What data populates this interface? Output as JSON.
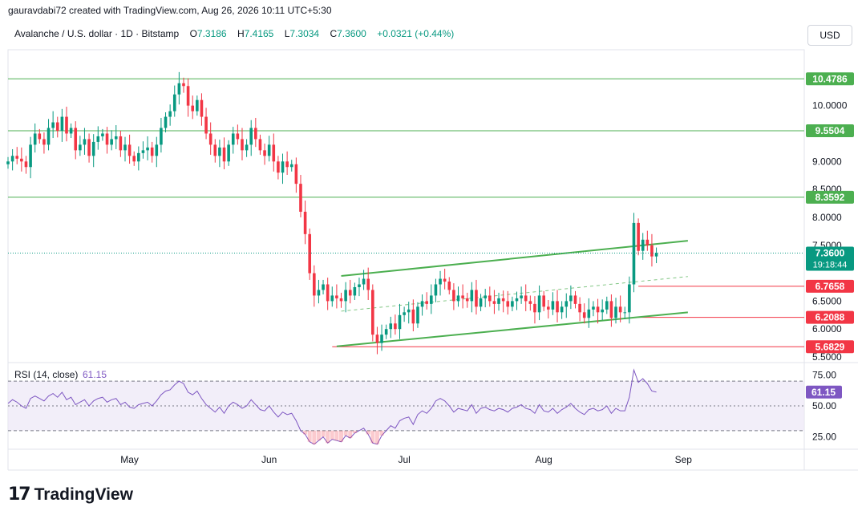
{
  "header": {
    "created_by": "gauravdabi72 created with TradingView.com, Aug 26, 2026 10:11 UTC+5:30"
  },
  "symbol": {
    "name": "Avalanche / U.S. dollar · 1D · Bitstamp",
    "open_label": "O",
    "open": "7.3186",
    "high_label": "H",
    "high": "7.4165",
    "low_label": "L",
    "low": "7.3034",
    "close_label": "C",
    "close": "7.3600",
    "change": "+0.0321 (+0.44%)"
  },
  "currency": "USD",
  "logo_text": "TradingView",
  "colors": {
    "up": "#089981",
    "down": "#f23645",
    "support_line": "#4caf50",
    "resistance_red": "#f23645",
    "rsi_line": "#7e57c2",
    "rsi_band": "#ede7f6"
  },
  "chart_data": [
    {
      "type": "candlestick",
      "x_axis_labels": [
        "May",
        "Jun",
        "Jul",
        "Aug",
        "Sep"
      ],
      "y_axis_ticks": [
        "10.0000",
        "9.0000",
        "8.5000",
        "8.0000",
        "7.5000",
        "6.5000",
        "6.0000",
        "5.5000"
      ],
      "ylim": [
        5.4,
        11.0
      ],
      "last_price": "7.3600",
      "countdown": "19:18:44",
      "horizontal_levels": [
        {
          "label": "10.4786",
          "value": 10.4786,
          "color": "#4caf50"
        },
        {
          "label": "9.5504",
          "value": 9.5504,
          "color": "#4caf50"
        },
        {
          "label": "8.3592",
          "value": 8.3592,
          "color": "#4caf50"
        },
        {
          "label": "6.7658",
          "value": 6.7658,
          "color": "#f23645"
        },
        {
          "label": "6.2088",
          "value": 6.2088,
          "color": "#f23645"
        },
        {
          "label": "5.6829",
          "value": 5.6829,
          "color": "#f23645"
        }
      ],
      "channel": {
        "upper": [
          [
            "Jun 17",
            6.95
          ],
          [
            "Sep 2",
            7.58
          ]
        ],
        "lower": [
          [
            "Jun 16",
            5.69
          ],
          [
            "Sep 2",
            6.3
          ]
        ],
        "mid": [
          [
            "Jun 17",
            6.32
          ],
          [
            "Sep 2",
            6.94
          ]
        ]
      },
      "closes": [
        9.0,
        9.1,
        9.05,
        9.0,
        8.9,
        9.3,
        9.5,
        9.4,
        9.3,
        9.6,
        9.7,
        9.55,
        9.8,
        9.5,
        9.6,
        9.2,
        9.3,
        9.4,
        9.1,
        9.35,
        9.45,
        9.5,
        9.3,
        9.4,
        9.45,
        9.2,
        9.3,
        9.1,
        9.0,
        9.15,
        9.2,
        9.25,
        9.1,
        9.3,
        9.6,
        9.8,
        9.9,
        10.2,
        10.4,
        10.35,
        10.0,
        9.9,
        10.1,
        9.8,
        9.5,
        9.3,
        9.1,
        9.25,
        9.0,
        9.3,
        9.5,
        9.4,
        9.2,
        9.3,
        9.6,
        9.4,
        9.2,
        9.1,
        9.3,
        9.0,
        8.8,
        9.0,
        8.9,
        8.95,
        8.6,
        8.1,
        7.7,
        7.0,
        6.6,
        6.7,
        6.8,
        6.5,
        6.6,
        6.55,
        6.5,
        6.7,
        6.6,
        6.75,
        6.8,
        6.9,
        6.7,
        5.9,
        5.75,
        5.9,
        6.0,
        6.1,
        6.0,
        6.25,
        6.3,
        6.35,
        6.1,
        6.4,
        6.5,
        6.45,
        6.6,
        6.8,
        6.9,
        6.85,
        6.7,
        6.5,
        6.6,
        6.55,
        6.5,
        6.7,
        6.4,
        6.55,
        6.6,
        6.5,
        6.45,
        6.55,
        6.5,
        6.4,
        6.5,
        6.55,
        6.6,
        6.5,
        6.45,
        6.3,
        6.6,
        6.4,
        6.35,
        6.5,
        6.3,
        6.4,
        6.5,
        6.6,
        6.45,
        6.3,
        6.2,
        6.35,
        6.4,
        6.3,
        6.35,
        6.5,
        6.2,
        6.4,
        6.3,
        6.3,
        6.8,
        7.9,
        7.4,
        7.6,
        7.5,
        7.3,
        7.36
      ],
      "rsi": {
        "label": "RSI (14, close)",
        "value": "61.15",
        "ticks": [
          "75.00",
          "50.00",
          "25.00"
        ],
        "band": [
          30,
          70
        ],
        "values": [
          52,
          55,
          53,
          50,
          48,
          56,
          58,
          56,
          54,
          58,
          60,
          57,
          61,
          55,
          57,
          51,
          53,
          55,
          50,
          54,
          56,
          57,
          53,
          55,
          56,
          51,
          53,
          49,
          48,
          51,
          52,
          53,
          50,
          54,
          59,
          62,
          63,
          67,
          70,
          68,
          61,
          59,
          62,
          56,
          51,
          48,
          45,
          49,
          44,
          50,
          53,
          51,
          48,
          50,
          55,
          51,
          47,
          46,
          50,
          45,
          41,
          45,
          43,
          44,
          38,
          30,
          27,
          21,
          19,
          22,
          25,
          20,
          23,
          22,
          21,
          26,
          24,
          28,
          30,
          32,
          27,
          20,
          19,
          26,
          30,
          34,
          32,
          38,
          40,
          41,
          35,
          43,
          46,
          44,
          48,
          54,
          56,
          54,
          50,
          45,
          48,
          47,
          46,
          51,
          44,
          48,
          49,
          47,
          46,
          48,
          47,
          45,
          48,
          49,
          51,
          48,
          47,
          44,
          51,
          46,
          45,
          48,
          44,
          47,
          49,
          52,
          48,
          45,
          43,
          47,
          48,
          46,
          47,
          50,
          44,
          48,
          46,
          46,
          57,
          79,
          69,
          72,
          68,
          62,
          61.15
        ]
      }
    }
  ]
}
